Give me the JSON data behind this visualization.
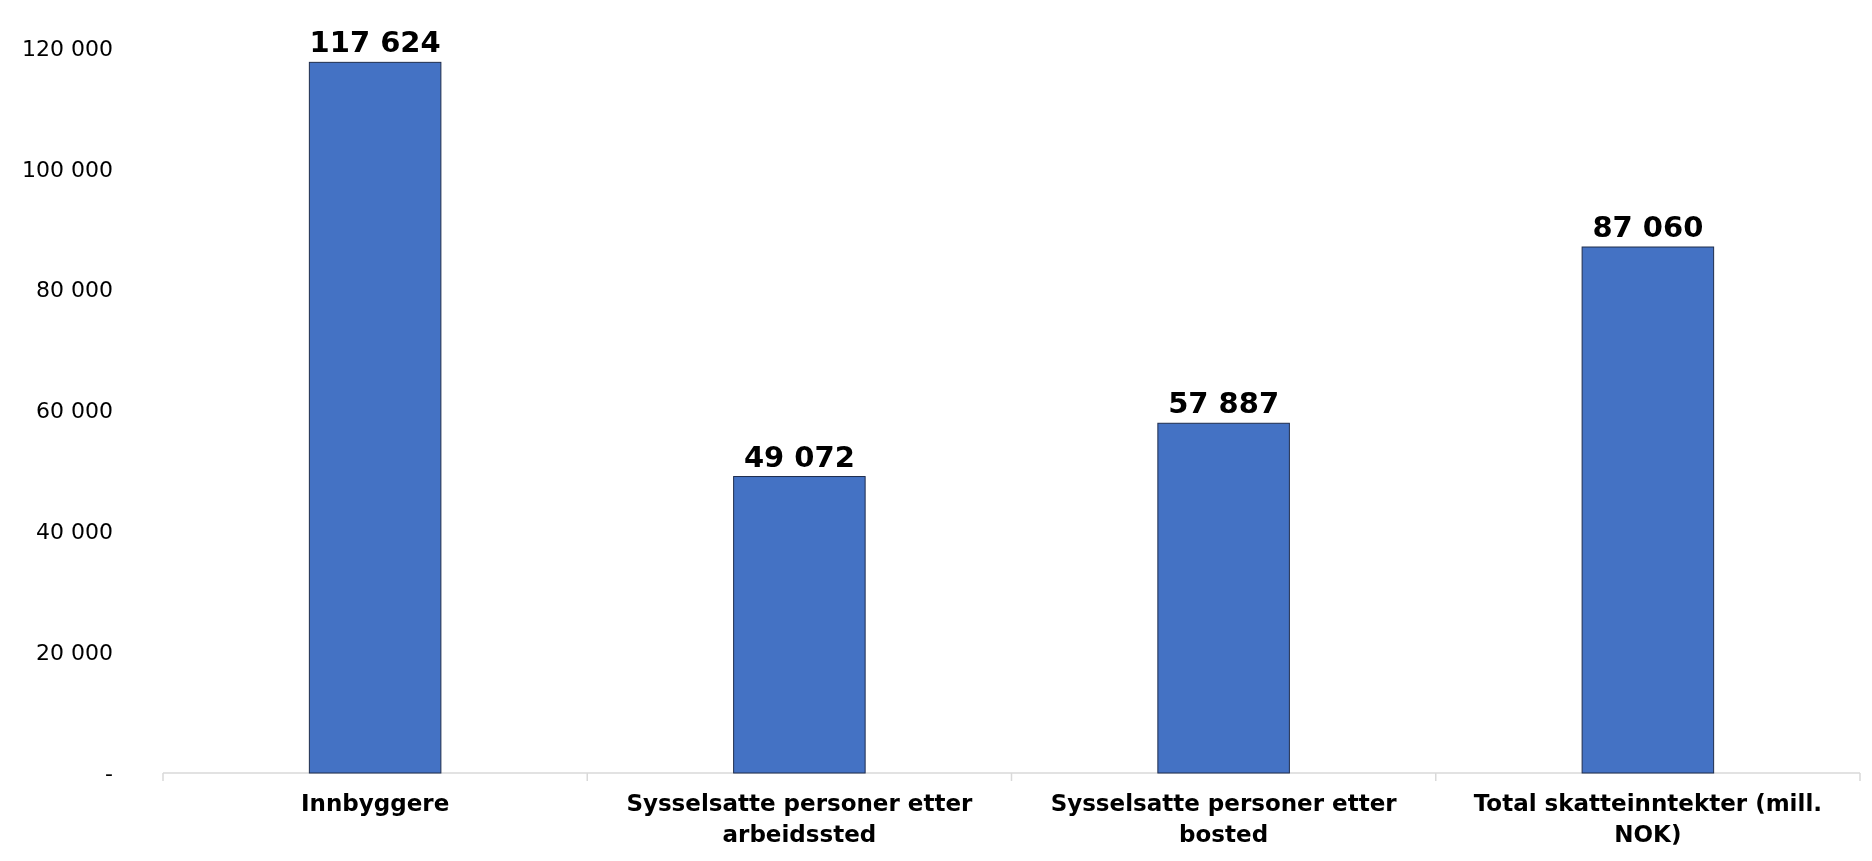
{
  "chart_data": {
    "type": "bar",
    "categories": [
      "Innbyggere",
      "Sysselsatte personer etter arbeidssted",
      "Sysselsatte personer etter bosted",
      "Total skatteinntekter (mill. NOK)"
    ],
    "values": [
      117624,
      49072,
      57887,
      87060
    ],
    "value_labels": [
      "117 624",
      "49 072",
      "57 887",
      "87 060"
    ],
    "color": "#4472c4",
    "ylim": [
      0,
      120000
    ],
    "yticks": [
      {
        "value": 0,
        "label": "-"
      },
      {
        "value": 20000,
        "label": "20 000"
      },
      {
        "value": 40000,
        "label": "40 000"
      },
      {
        "value": 60000,
        "label": "60 000"
      },
      {
        "value": 80000,
        "label": "80 000"
      },
      {
        "value": 100000,
        "label": "100 000"
      },
      {
        "value": 120000,
        "label": "120 000"
      }
    ],
    "grid": false
  }
}
